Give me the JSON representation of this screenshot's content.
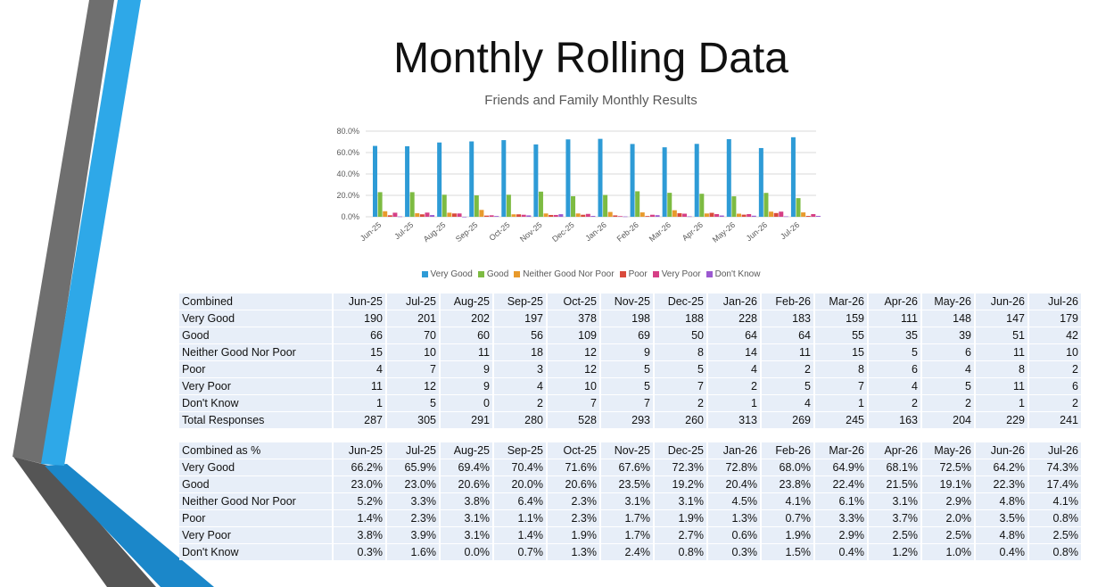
{
  "title": "Monthly Rolling Data",
  "colors": {
    "very_good": "#2E9BD6",
    "good": "#7DBB42",
    "neither": "#E89A2C",
    "poor": "#D94A3B",
    "very_poor": "#D63F86",
    "dont_know": "#9B59D0"
  },
  "chart_data": {
    "type": "bar",
    "title": "Friends and Family Monthly Results",
    "categories": [
      "Jun-25",
      "Jul-25",
      "Aug-25",
      "Sep-25",
      "Oct-25",
      "Nov-25",
      "Dec-25",
      "Jan-26",
      "Feb-26",
      "Mar-26",
      "Apr-26",
      "May-26",
      "Jun-26",
      "Jul-26"
    ],
    "yticks": [
      "0.0%",
      "20.0%",
      "40.0%",
      "60.0%",
      "80.0%"
    ],
    "ylim": [
      0,
      80
    ],
    "legend_position": "bottom",
    "series": [
      {
        "name": "Very Good",
        "color": "#2E9BD6",
        "values": [
          66.2,
          65.9,
          69.4,
          70.4,
          71.6,
          67.6,
          72.3,
          72.8,
          68.0,
          64.9,
          68.1,
          72.5,
          64.2,
          74.3
        ]
      },
      {
        "name": "Good",
        "color": "#7DBB42",
        "values": [
          23.0,
          23.0,
          20.6,
          20.0,
          20.6,
          23.5,
          19.2,
          20.4,
          23.8,
          22.4,
          21.5,
          19.1,
          22.3,
          17.4
        ]
      },
      {
        "name": "Neither Good Nor Poor",
        "color": "#E89A2C",
        "values": [
          5.2,
          3.3,
          3.8,
          6.4,
          2.3,
          3.1,
          3.1,
          4.5,
          4.1,
          6.1,
          3.1,
          2.9,
          4.8,
          4.1
        ]
      },
      {
        "name": "Poor",
        "color": "#D94A3B",
        "values": [
          1.4,
          2.3,
          3.1,
          1.1,
          2.3,
          1.7,
          1.9,
          1.3,
          0.7,
          3.3,
          3.7,
          2.0,
          3.5,
          0.8
        ]
      },
      {
        "name": "Very Poor",
        "color": "#D63F86",
        "values": [
          3.8,
          3.9,
          3.1,
          1.4,
          1.9,
          1.7,
          2.7,
          0.6,
          1.9,
          2.9,
          2.5,
          2.5,
          4.8,
          2.5
        ]
      },
      {
        "name": "Don't Know",
        "color": "#9B59D0",
        "values": [
          0.3,
          1.6,
          0.0,
          0.7,
          1.3,
          2.4,
          0.8,
          0.3,
          1.5,
          0.4,
          1.2,
          1.0,
          0.4,
          0.8
        ]
      }
    ]
  },
  "table_counts": {
    "header": [
      "Combined",
      "Jun-25",
      "Jul-25",
      "Aug-25",
      "Sep-25",
      "Oct-25",
      "Nov-25",
      "Dec-25",
      "Jan-26",
      "Feb-26",
      "Mar-26",
      "Apr-26",
      "May-26",
      "Jun-26",
      "Jul-26"
    ],
    "rows": [
      [
        "Very Good",
        "190",
        "201",
        "202",
        "197",
        "378",
        "198",
        "188",
        "228",
        "183",
        "159",
        "111",
        "148",
        "147",
        "179"
      ],
      [
        "Good",
        "66",
        "70",
        "60",
        "56",
        "109",
        "69",
        "50",
        "64",
        "64",
        "55",
        "35",
        "39",
        "51",
        "42"
      ],
      [
        "Neither Good Nor Poor",
        "15",
        "10",
        "11",
        "18",
        "12",
        "9",
        "8",
        "14",
        "11",
        "15",
        "5",
        "6",
        "11",
        "10"
      ],
      [
        "Poor",
        "4",
        "7",
        "9",
        "3",
        "12",
        "5",
        "5",
        "4",
        "2",
        "8",
        "6",
        "4",
        "8",
        "2"
      ],
      [
        "Very Poor",
        "11",
        "12",
        "9",
        "4",
        "10",
        "5",
        "7",
        "2",
        "5",
        "7",
        "4",
        "5",
        "11",
        "6"
      ],
      [
        "Don't Know",
        "1",
        "5",
        "0",
        "2",
        "7",
        "7",
        "2",
        "1",
        "4",
        "1",
        "2",
        "2",
        "1",
        "2"
      ],
      [
        "Total Responses",
        "287",
        "305",
        "291",
        "280",
        "528",
        "293",
        "260",
        "313",
        "269",
        "245",
        "163",
        "204",
        "229",
        "241"
      ]
    ]
  },
  "table_pct": {
    "header": [
      "Combined as %",
      "Jun-25",
      "Jul-25",
      "Aug-25",
      "Sep-25",
      "Oct-25",
      "Nov-25",
      "Dec-25",
      "Jan-26",
      "Feb-26",
      "Mar-26",
      "Apr-26",
      "May-26",
      "Jun-26",
      "Jul-26"
    ],
    "rows": [
      [
        "Very Good",
        "66.2%",
        "65.9%",
        "69.4%",
        "70.4%",
        "71.6%",
        "67.6%",
        "72.3%",
        "72.8%",
        "68.0%",
        "64.9%",
        "68.1%",
        "72.5%",
        "64.2%",
        "74.3%"
      ],
      [
        "Good",
        "23.0%",
        "23.0%",
        "20.6%",
        "20.0%",
        "20.6%",
        "23.5%",
        "19.2%",
        "20.4%",
        "23.8%",
        "22.4%",
        "21.5%",
        "19.1%",
        "22.3%",
        "17.4%"
      ],
      [
        "Neither Good Nor Poor",
        "5.2%",
        "3.3%",
        "3.8%",
        "6.4%",
        "2.3%",
        "3.1%",
        "3.1%",
        "4.5%",
        "4.1%",
        "6.1%",
        "3.1%",
        "2.9%",
        "4.8%",
        "4.1%"
      ],
      [
        "Poor",
        "1.4%",
        "2.3%",
        "3.1%",
        "1.1%",
        "2.3%",
        "1.7%",
        "1.9%",
        "1.3%",
        "0.7%",
        "3.3%",
        "3.7%",
        "2.0%",
        "3.5%",
        "0.8%"
      ],
      [
        "Very Poor",
        "3.8%",
        "3.9%",
        "3.1%",
        "1.4%",
        "1.9%",
        "1.7%",
        "2.7%",
        "0.6%",
        "1.9%",
        "2.9%",
        "2.5%",
        "2.5%",
        "4.8%",
        "2.5%"
      ],
      [
        "Don't Know",
        "0.3%",
        "1.6%",
        "0.0%",
        "0.7%",
        "1.3%",
        "2.4%",
        "0.8%",
        "0.3%",
        "1.5%",
        "0.4%",
        "1.2%",
        "1.0%",
        "0.4%",
        "0.8%"
      ]
    ]
  }
}
